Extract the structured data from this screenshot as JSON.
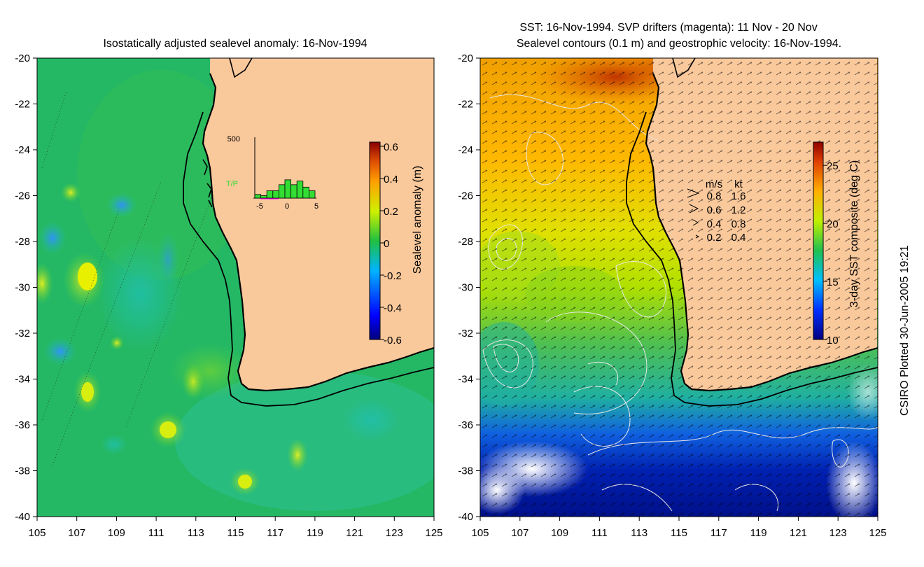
{
  "left_panel": {
    "title": "Isostatically adjusted sealevel anomaly: 16-Nov-1994",
    "colorbar": {
      "label": "Sealevel anomaly (m)",
      "ticks": [
        "0.6",
        "0.4",
        "0.2",
        "0",
        "-0.2",
        "-0.4",
        "-0.6"
      ],
      "range": [
        -0.6,
        0.6
      ]
    },
    "inset": {
      "max_label": "500",
      "series_label": "T/P",
      "x_ticks": [
        "-5",
        "0",
        "5"
      ],
      "bar_values": [
        30,
        20,
        60,
        60,
        110,
        150,
        110,
        140,
        90,
        60
      ]
    }
  },
  "right_panel": {
    "title_line1": "SST: 16-Nov-1994. SVP drifters (magenta): 11 Nov - 20 Nov",
    "title_line2": "Sealevel contours (0.1 m) and geostrophic velocity: 16-Nov-1994.",
    "colorbar": {
      "label": "3-day SST composite (deg C)",
      "ticks": [
        "25",
        "20",
        "15",
        "10"
      ],
      "range": [
        10,
        27
      ]
    },
    "velocity_legend": {
      "header_ms": "m/s",
      "header_kt": "kt",
      "rows": [
        {
          "ms": "0.8",
          "kt": "1.6"
        },
        {
          "ms": "0.6",
          "kt": "1.2"
        },
        {
          "ms": "0.4",
          "kt": "0.8"
        },
        {
          "ms": "0.2",
          "kt": "0.4"
        }
      ]
    }
  },
  "axes": {
    "lat_labels": [
      "-20",
      "-22",
      "-24",
      "-26",
      "-28",
      "-30",
      "-32",
      "-34",
      "-36",
      "-38",
      "-40"
    ],
    "lon_labels": [
      "105",
      "107",
      "109",
      "111",
      "113",
      "115",
      "117",
      "119",
      "121",
      "123",
      "125"
    ],
    "lat_range": [
      -40,
      -20
    ],
    "lon_range": [
      105,
      125
    ]
  },
  "credit": "CSIRO Plotted 30-Jun-2005 19:21",
  "colors": {
    "land": "#f9c89b",
    "ssh_base": "#22b060",
    "coast": "#000000"
  }
}
